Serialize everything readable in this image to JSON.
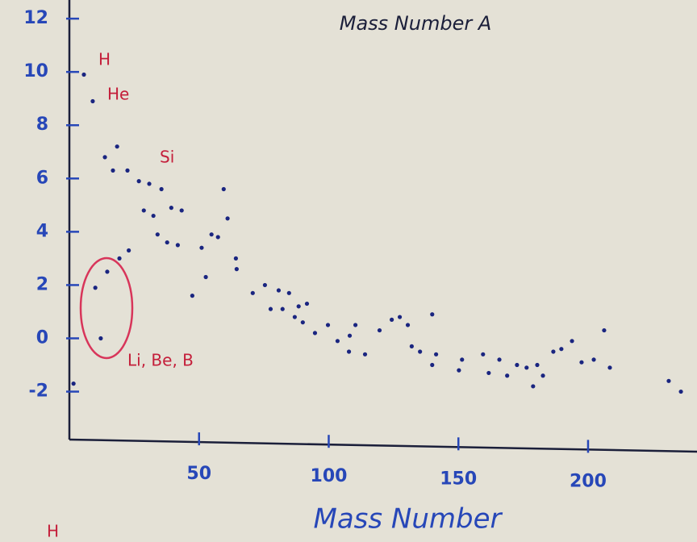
{
  "chart_data": {
    "type": "scatter",
    "title": "Mass Number A",
    "x_label": "Mass Number",
    "annotations": [
      "H",
      "He",
      "Si",
      "Li, Be, B",
      "H"
    ],
    "color": "#1a2580",
    "annotation_color": "#c41e3a",
    "xlim": [
      0,
      242
    ],
    "ylim": [
      -3.8,
      12.7
    ],
    "xticks": [
      50,
      100,
      150,
      200
    ],
    "yticks": [
      -2,
      0,
      2,
      4,
      6,
      8,
      10,
      12
    ],
    "x": [
      5.6,
      9.0,
      10,
      12.1,
      14.6,
      1.6,
      13.7,
      18.4,
      16.8,
      22.4,
      26.8,
      30.8,
      35.5,
      28.7,
      32.4,
      39.3,
      43.3,
      34,
      37.7,
      41.8,
      22.9,
      19.3,
      47.4,
      52.6,
      51,
      54.8,
      57.3,
      61,
      59.5,
      64.2,
      64.5,
      70.7,
      75.4,
      80.7,
      84.7,
      77.6,
      82.2,
      88.4,
      91.6,
      86.9,
      90,
      94.7,
      99.7,
      103.4,
      108.1,
      110.3,
      107.8,
      114,
      119.6,
      124.3,
      127.4,
      130.5,
      132,
      135.2,
      139.9,
      141.4,
      139.9,
      151.4,
      150.2,
      159.5,
      161.7,
      165.8,
      168.8,
      172.6,
      176.3,
      178.8,
      180.4,
      182.6,
      186.6,
      189.7,
      193.8,
      197.5,
      202.2,
      206.2,
      208.4,
      231.1,
      235.8
    ],
    "values": [
      9.9,
      8.9,
      1.9,
      0,
      2.5,
      -1.7,
      6.8,
      7.2,
      6.3,
      6.3,
      5.9,
      5.8,
      5.6,
      4.8,
      4.6,
      4.9,
      4.8,
      3.9,
      3.6,
      3.5,
      3.3,
      3.0,
      1.6,
      2.3,
      3.4,
      3.9,
      3.8,
      4.5,
      5.6,
      3.0,
      2.6,
      1.7,
      2.0,
      1.8,
      1.7,
      1.1,
      1.1,
      1.2,
      1.3,
      0.8,
      0.6,
      0.2,
      0.5,
      -0.1,
      0.1,
      0.5,
      -0.5,
      -0.6,
      0.3,
      0.7,
      0.8,
      0.5,
      -0.3,
      -0.5,
      0.9,
      -0.6,
      -1.0,
      -0.8,
      -1.2,
      -0.6,
      -1.3,
      -0.8,
      -1.4,
      -1.0,
      -1.1,
      -1.8,
      -1.0,
      -1.4,
      -0.5,
      -0.4,
      -0.1,
      -0.9,
      -0.8,
      0.3,
      -1.1,
      -1.6,
      -2.0
    ]
  }
}
